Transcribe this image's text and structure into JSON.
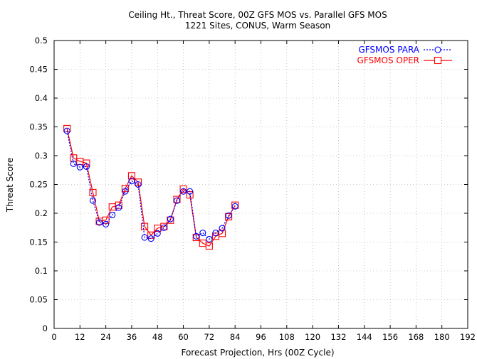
{
  "chart_data": {
    "type": "line",
    "title": "Ceiling Ht., Threat Score, 00Z GFS MOS vs. Parallel GFS MOS",
    "subtitle": "1221 Sites, CONUS, Warm Season",
    "xlabel": "Forecast Projection, Hrs (00Z Cycle)",
    "ylabel": "Threat Score",
    "xlim": [
      0,
      192
    ],
    "ylim": [
      0,
      0.5
    ],
    "xticks": [
      0,
      12,
      24,
      36,
      48,
      60,
      72,
      84,
      96,
      108,
      120,
      132,
      144,
      156,
      168,
      180,
      192
    ],
    "yticks": [
      0,
      0.05,
      0.1,
      0.15,
      0.2,
      0.25,
      0.3,
      0.35,
      0.4,
      0.45,
      0.5
    ],
    "ytick_labels": [
      "0",
      "0.05",
      "0.1",
      "0.15",
      "0.2",
      "0.25",
      "0.3",
      "0.35",
      "0.4",
      "0.45",
      "0.5"
    ],
    "grid": true,
    "legend_position": "top-right",
    "x": [
      6,
      9,
      12,
      15,
      18,
      21,
      24,
      27,
      30,
      33,
      36,
      39,
      42,
      45,
      48,
      51,
      54,
      57,
      60,
      63,
      66,
      69,
      72,
      75,
      78,
      81,
      84
    ],
    "series": [
      {
        "name": "GFSMOS PARA",
        "color": "#0000ff",
        "line": "dotted",
        "marker": "circle",
        "values": [
          0.343,
          0.286,
          0.28,
          0.281,
          0.222,
          0.184,
          0.181,
          0.197,
          0.21,
          0.238,
          0.256,
          0.25,
          0.158,
          0.156,
          0.165,
          0.175,
          0.19,
          0.222,
          0.238,
          0.238,
          0.16,
          0.166,
          0.155,
          0.166,
          0.174,
          0.196,
          0.212
        ]
      },
      {
        "name": "GFSMOS OPER",
        "color": "#ff0000",
        "line": "solid",
        "marker": "square",
        "values": [
          0.347,
          0.296,
          0.29,
          0.287,
          0.236,
          0.186,
          0.188,
          0.211,
          0.214,
          0.243,
          0.265,
          0.254,
          0.177,
          0.162,
          0.174,
          0.177,
          0.188,
          0.224,
          0.242,
          0.232,
          0.158,
          0.148,
          0.143,
          0.16,
          0.165,
          0.194,
          0.214
        ]
      }
    ]
  },
  "colors": {
    "axis": "#000000",
    "grid": "#a0a0a0"
  }
}
